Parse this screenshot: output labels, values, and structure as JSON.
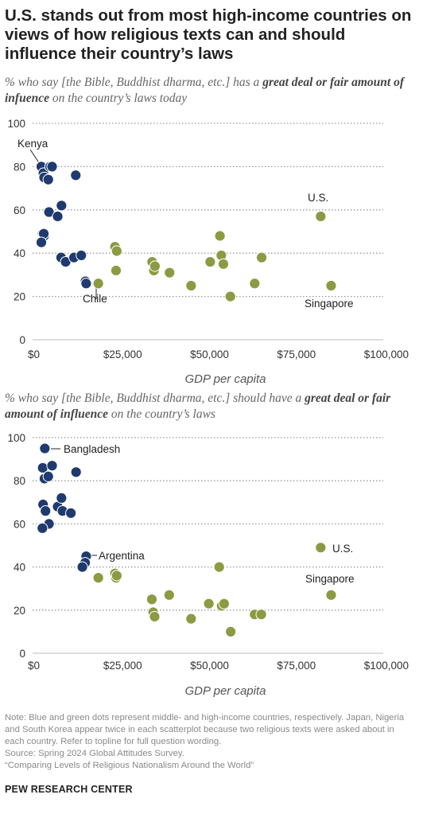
{
  "title": "U.S. stands out from most high-income countries on views of how religious texts can and should influence their country’s laws",
  "colors": {
    "middle_income": "#1f3a6e",
    "high_income": "#8c9a42",
    "grid": "#9a9a9a",
    "axis_text": "#333333"
  },
  "chart_data": [
    {
      "type": "scatter",
      "subtitle_pre": "% who say [the Bible, Buddhist dharma, etc.] has a ",
      "subtitle_bold": "great deal or fair amount of infuence",
      "subtitle_post": " on the country’s laws today",
      "xlabel": "GDP per capita",
      "ylabel": "",
      "xlim": [
        0,
        100000
      ],
      "ylim": [
        0,
        100
      ],
      "x_ticks": [
        0,
        25000,
        50000,
        75000,
        100000
      ],
      "x_tick_labels": [
        "$0",
        "$25,000",
        "$50,000",
        "$75,000",
        "$100,000"
      ],
      "y_ticks": [
        0,
        20,
        40,
        60,
        80,
        100
      ],
      "y_tick_labels": [
        "0",
        "20",
        "40",
        "60",
        "80",
        "100"
      ],
      "grid": "horizontal dotted",
      "series": [
        {
          "group": "middle",
          "x": [
            1600,
            2200,
            2400,
            3600,
            4100,
            4700,
            2000,
            2400,
            3800,
            7400,
            6300,
            2300,
            1600,
            7300,
            8600,
            11000,
            11500,
            13100,
            14300,
            14500
          ],
          "y": [
            80,
            77,
            75,
            74,
            80,
            80,
            49,
            48,
            59,
            62,
            57,
            49,
            45,
            38,
            36,
            38,
            76,
            39,
            27,
            26
          ]
        },
        {
          "group": "high",
          "x": [
            18000,
            22800,
            23100,
            23300,
            33500,
            34000,
            34300,
            38500,
            44700,
            50200,
            53000,
            53400,
            54000,
            56000,
            63000,
            65000,
            82000,
            85000
          ],
          "y": [
            26,
            43,
            32,
            41,
            36,
            32,
            34,
            31,
            25,
            36,
            48,
            39,
            35,
            20,
            26,
            38,
            57,
            25
          ]
        }
      ],
      "annotations": [
        {
          "label": "Kenya",
          "x": 1600,
          "y": 80
        },
        {
          "label": "Chile",
          "x": 14500,
          "y": 26
        },
        {
          "label": "U.S.",
          "x": 82000,
          "y": 57
        },
        {
          "label": "Singapore",
          "x": 85000,
          "y": 25
        }
      ]
    },
    {
      "type": "scatter",
      "subtitle_pre": "% who say [the Bible, Buddhist dharma, etc.] should have a ",
      "subtitle_bold": "great deal or fair amount of influence",
      "subtitle_post": " on the country’s laws",
      "xlabel": "GDP per capita",
      "ylabel": "",
      "xlim": [
        0,
        100000
      ],
      "ylim": [
        0,
        100
      ],
      "x_ticks": [
        0,
        25000,
        50000,
        75000,
        100000
      ],
      "x_tick_labels": [
        "$0",
        "$25,000",
        "$50,000",
        "$75,000",
        "$100,000"
      ],
      "y_ticks": [
        0,
        20,
        40,
        60,
        80,
        100
      ],
      "y_tick_labels": [
        "0",
        "20",
        "40",
        "60",
        "80",
        "100"
      ],
      "grid": "horizontal dotted",
      "series": [
        {
          "group": "middle",
          "x": [
            2600,
            2000,
            2500,
            4700,
            3600,
            2100,
            2800,
            6300,
            7400,
            7700,
            10100,
            3800,
            1900,
            11600,
            14500,
            14200,
            13400
          ],
          "y": [
            95,
            86,
            81,
            87,
            82,
            69,
            66,
            68,
            72,
            66,
            65,
            60,
            58,
            84,
            45,
            42,
            40
          ]
        },
        {
          "group": "high",
          "x": [
            18000,
            22800,
            23100,
            23300,
            33400,
            33800,
            34200,
            38400,
            44700,
            49800,
            52800,
            53500,
            54200,
            56100,
            63000,
            64900,
            82000,
            85000
          ],
          "y": [
            35,
            37,
            35,
            36,
            25,
            19,
            17,
            27,
            16,
            23,
            40,
            22,
            23,
            10,
            18,
            18,
            49,
            27
          ]
        }
      ],
      "annotations": [
        {
          "label": "Bangladesh",
          "x": 2600,
          "y": 95
        },
        {
          "label": "Argentina",
          "x": 14500,
          "y": 45
        },
        {
          "label": "U.S.",
          "x": 82000,
          "y": 49
        },
        {
          "label": "Singapore",
          "x": 85000,
          "y": 27
        }
      ]
    }
  ],
  "footer": {
    "note": "Note: Blue and green dots represent middle- and high-income countries, respectively. Japan, Nigeria and South Korea appear twice in each scatterplot because two religious texts were asked about in each country. Refer to topline for full question wording.",
    "source": "Source: Spring 2024 Global Attitudes Survey.",
    "report": "“Comparing Levels of Religious Nationalism Around the World”",
    "brand": "PEW RESEARCH CENTER"
  }
}
